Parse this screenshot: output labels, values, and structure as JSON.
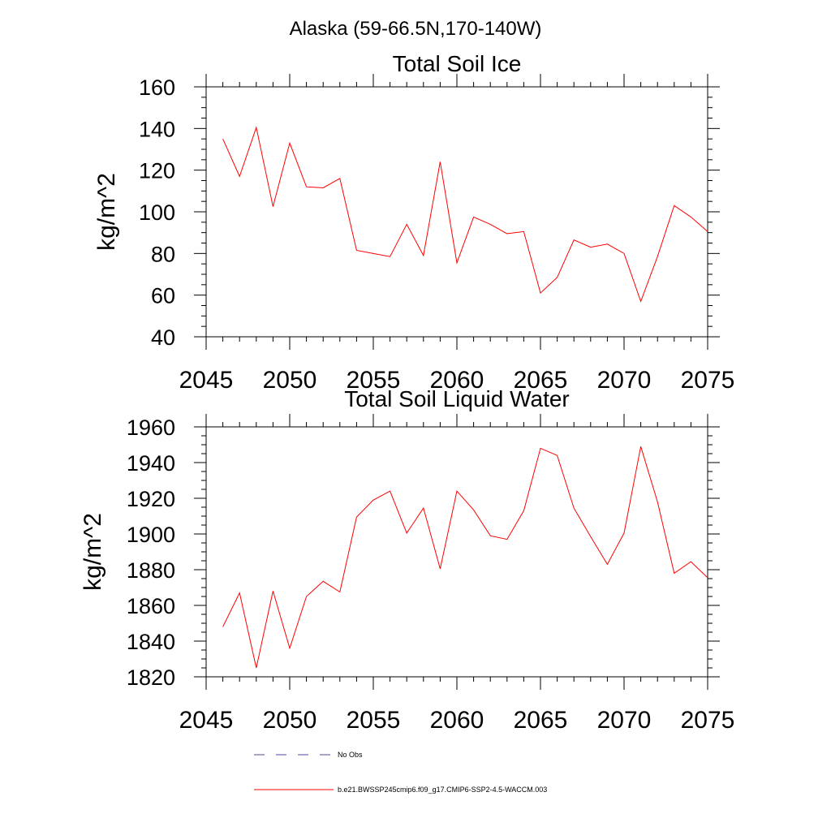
{
  "figure": {
    "title": "Alaska (59-66.5N,170-140W)"
  },
  "colors": {
    "series": "#ff0000",
    "obs": "#4a4a9a",
    "axis": "#000000"
  },
  "chart_data": [
    {
      "type": "line",
      "title": "Total Soil Ice",
      "xlabel": "",
      "ylabel": "kg/m^2",
      "xlim": [
        2045,
        2075
      ],
      "ylim": [
        40,
        160
      ],
      "xticks": [
        2045,
        2050,
        2055,
        2060,
        2065,
        2070,
        2075
      ],
      "yticks": [
        40,
        60,
        80,
        100,
        120,
        140,
        160
      ],
      "x": [
        2046,
        2047,
        2048,
        2049,
        2050,
        2051,
        2052,
        2053,
        2054,
        2055,
        2056,
        2057,
        2058,
        2059,
        2060,
        2061,
        2062,
        2063,
        2064,
        2065,
        2066,
        2067,
        2068,
        2069,
        2070,
        2071,
        2072,
        2073,
        2074,
        2075
      ],
      "series": [
        {
          "name": "b.e21.BWSSP245cmip6.f09_g17.CMIP6-SSP2-4.5-WACCM.003",
          "values": [
            135,
            117,
            140.5,
            102.5,
            133,
            112,
            111.5,
            116,
            81.5,
            80,
            78.5,
            94,
            79,
            124,
            75.5,
            97.5,
            94,
            89.5,
            90.5,
            61,
            68.5,
            86.5,
            83,
            84.5,
            80,
            57,
            78.5,
            103,
            97.5,
            90.5
          ]
        }
      ]
    },
    {
      "type": "line",
      "title": "Total Soil Liquid Water",
      "xlabel": "",
      "ylabel": "kg/m^2",
      "xlim": [
        2045,
        2075
      ],
      "ylim": [
        1820,
        1960
      ],
      "xticks": [
        2045,
        2050,
        2055,
        2060,
        2065,
        2070,
        2075
      ],
      "yticks": [
        1820,
        1840,
        1860,
        1880,
        1900,
        1920,
        1940,
        1960
      ],
      "x": [
        2046,
        2047,
        2048,
        2049,
        2050,
        2051,
        2052,
        2053,
        2054,
        2055,
        2056,
        2057,
        2058,
        2059,
        2060,
        2061,
        2062,
        2063,
        2064,
        2065,
        2066,
        2067,
        2068,
        2069,
        2070,
        2071,
        2072,
        2073,
        2074,
        2075
      ],
      "series": [
        {
          "name": "b.e21.BWSSP245cmip6.f09_g17.CMIP6-SSP2-4.5-WACCM.003",
          "values": [
            1848,
            1867,
            1825,
            1868,
            1836,
            1865,
            1873.5,
            1867.5,
            1909.5,
            1919,
            1924,
            1900.5,
            1914.5,
            1880.5,
            1924,
            1913.5,
            1899,
            1897,
            1913,
            1948,
            1944,
            1914.5,
            1898.5,
            1883,
            1900.5,
            1949,
            1918,
            1878,
            1884.5,
            1875.5
          ]
        }
      ]
    }
  ],
  "legend": {
    "entries": [
      {
        "label": "No Obs",
        "style": "dashed",
        "color_key": "obs"
      },
      {
        "label": "b.e21.BWSSP245cmip6.f09_g17.CMIP6-SSP2-4.5-WACCM.003",
        "style": "solid",
        "color_key": "series"
      }
    ]
  }
}
